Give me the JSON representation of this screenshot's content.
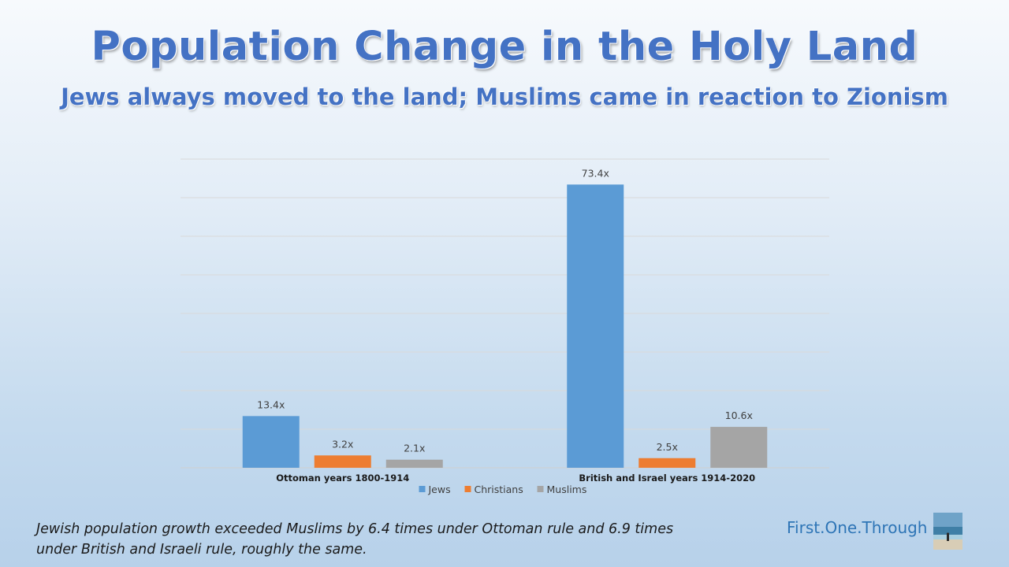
{
  "header": {
    "title": "Population Change in the Holy Land",
    "subtitle": "Jews always moved to the land; Muslims came in reaction to Zionism"
  },
  "chart_data": {
    "type": "bar",
    "categories": [
      "Ottoman years 1800-1914",
      "British and Israel years 1914-2020"
    ],
    "series": [
      {
        "name": "Jews",
        "values": [
          13.4,
          73.4
        ],
        "labels": [
          "13.4x",
          "73.4x"
        ],
        "color": "#5b9bd5"
      },
      {
        "name": "Christians",
        "values": [
          3.2,
          2.5
        ],
        "labels": [
          "3.2x",
          "2.5x"
        ],
        "color": "#ed7d31"
      },
      {
        "name": "Muslims",
        "values": [
          2.1,
          10.6
        ],
        "labels": [
          "2.1x",
          "10.6x"
        ],
        "color": "#a5a5a5"
      }
    ],
    "ylim": [
      0,
      80
    ],
    "grid": true,
    "legend": "bottom",
    "xlabel": "",
    "ylabel": ""
  },
  "footer": {
    "caption_line1": "Jewish population growth exceeded Muslims by 6.4 times under Ottoman rule and 6.9 times",
    "caption_line2": "under British and Israeli rule, roughly the same.",
    "brand": "First.One.Through"
  }
}
